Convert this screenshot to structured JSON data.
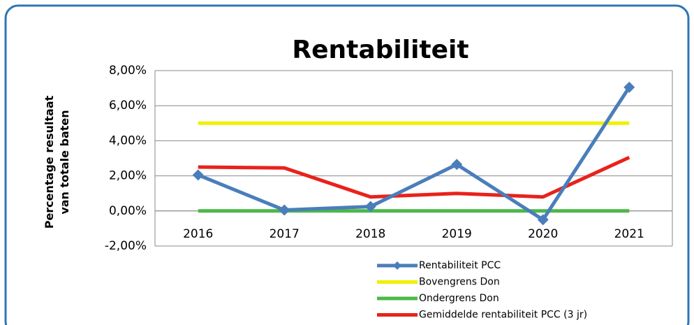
{
  "chart_data": {
    "type": "line",
    "title": "Rentabiliteit",
    "y_label": "Percentage resultaat van totale baten",
    "categories": [
      "2016",
      "2017",
      "2018",
      "2019",
      "2020",
      "2021"
    ],
    "series": [
      {
        "name": "Rentabiliteit PCC",
        "color": "#4a7ebb",
        "marker": "diamond",
        "values": [
          2.05,
          0.05,
          0.25,
          2.65,
          -0.5,
          7.05
        ]
      },
      {
        "name": "Bovengrens Don",
        "color": "#f0f000",
        "values": [
          5,
          5,
          5,
          5,
          5,
          5
        ]
      },
      {
        "name": "Ondergrens Don",
        "color": "#4cb848",
        "values": [
          0,
          0,
          0,
          0,
          0,
          0
        ]
      },
      {
        "name": "Gemiddelde rentabiliteit PCC (3 jr)",
        "color": "#e8221b",
        "values": [
          2.5,
          2.45,
          0.8,
          1.0,
          0.8,
          3.05
        ]
      }
    ],
    "ylim": [
      -2,
      8
    ],
    "yticks": [
      {
        "value": -2,
        "label": "-2,00%"
      },
      {
        "value": 0,
        "label": "0,00%"
      },
      {
        "value": 2,
        "label": "2,00%"
      },
      {
        "value": 4,
        "label": "4,00%"
      },
      {
        "value": 6,
        "label": "6,00%"
      },
      {
        "value": 8,
        "label": "8,00%"
      }
    ],
    "grid": true,
    "legend": "bottom"
  }
}
